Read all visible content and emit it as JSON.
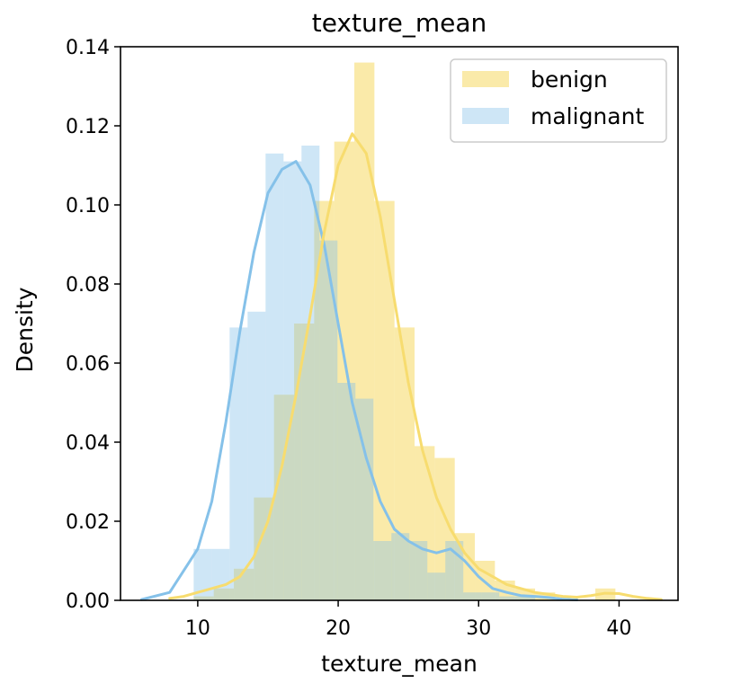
{
  "chart_data": {
    "type": "histogram",
    "title": "texture_mean",
    "xlabel": "texture_mean",
    "ylabel": "Density",
    "xlim": [
      4.5,
      44.2
    ],
    "ylim": [
      0,
      0.14
    ],
    "x_ticks": [
      10,
      20,
      30,
      40
    ],
    "y_ticks": [
      0.0,
      0.02,
      0.04,
      0.06,
      0.08,
      0.1,
      0.12,
      0.14
    ],
    "x_tick_labels": [
      "10",
      "20",
      "30",
      "40"
    ],
    "y_tick_labels": [
      "0.00",
      "0.02",
      "0.04",
      "0.06",
      "0.08",
      "0.10",
      "0.12",
      "0.14"
    ],
    "grid": false,
    "legend_position": "top-right",
    "series": [
      {
        "name": "malignant",
        "color": "#85c1e9",
        "bins": [
          [
            9.71,
            10.99,
            0.013
          ],
          [
            10.99,
            12.27,
            0.013
          ],
          [
            12.27,
            13.55,
            0.069
          ],
          [
            13.55,
            14.83,
            0.073
          ],
          [
            14.83,
            16.11,
            0.113
          ],
          [
            16.11,
            17.39,
            0.111
          ],
          [
            17.39,
            18.67,
            0.115
          ],
          [
            18.67,
            19.95,
            0.091
          ],
          [
            19.95,
            21.23,
            0.055
          ],
          [
            21.23,
            22.51,
            0.051
          ],
          [
            22.51,
            23.79,
            0.015
          ],
          [
            23.79,
            25.07,
            0.017
          ],
          [
            25.07,
            26.35,
            0.015
          ],
          [
            26.35,
            27.63,
            0.007
          ],
          [
            27.63,
            28.91,
            0.015
          ],
          [
            28.91,
            30.19,
            0.002
          ],
          [
            30.19,
            31.47,
            0.002
          ],
          [
            31.47,
            32.75,
            0.001
          ],
          [
            32.75,
            34.03,
            0.001
          ]
        ],
        "kde": [
          [
            6,
            0.0002
          ],
          [
            8,
            0.002
          ],
          [
            10,
            0.013
          ],
          [
            11,
            0.025
          ],
          [
            12,
            0.045
          ],
          [
            13,
            0.068
          ],
          [
            14,
            0.088
          ],
          [
            15,
            0.103
          ],
          [
            16,
            0.109
          ],
          [
            17,
            0.111
          ],
          [
            18,
            0.105
          ],
          [
            19,
            0.09
          ],
          [
            20,
            0.07
          ],
          [
            21,
            0.05
          ],
          [
            22,
            0.036
          ],
          [
            23,
            0.025
          ],
          [
            24,
            0.018
          ],
          [
            25,
            0.015
          ],
          [
            26,
            0.013
          ],
          [
            27,
            0.012
          ],
          [
            28,
            0.013
          ],
          [
            29,
            0.01
          ],
          [
            30,
            0.006
          ],
          [
            31,
            0.003
          ],
          [
            32,
            0.002
          ],
          [
            33,
            0.0012
          ],
          [
            34,
            0.001
          ],
          [
            35,
            0.0007
          ],
          [
            36,
            0.0003
          ],
          [
            37,
            0.0001
          ]
        ]
      },
      {
        "name": "benign",
        "color": "#f7dc6f",
        "bins": [
          [
            9.71,
            11.14,
            0.001
          ],
          [
            11.14,
            12.57,
            0.003
          ],
          [
            12.57,
            14.0,
            0.008
          ],
          [
            14.0,
            15.43,
            0.026
          ],
          [
            15.43,
            16.86,
            0.052
          ],
          [
            16.86,
            18.29,
            0.07
          ],
          [
            18.29,
            19.72,
            0.101
          ],
          [
            19.72,
            21.15,
            0.116
          ],
          [
            21.15,
            22.58,
            0.136
          ],
          [
            22.58,
            24.01,
            0.101
          ],
          [
            24.01,
            25.44,
            0.069
          ],
          [
            25.44,
            26.87,
            0.039
          ],
          [
            26.87,
            28.3,
            0.036
          ],
          [
            28.3,
            29.73,
            0.017
          ],
          [
            29.73,
            31.16,
            0.01
          ],
          [
            31.16,
            32.59,
            0.005
          ],
          [
            32.59,
            34.02,
            0.003
          ],
          [
            34.02,
            35.45,
            0.002
          ],
          [
            35.45,
            36.88,
            0.0
          ],
          [
            36.88,
            38.31,
            0.0
          ],
          [
            38.31,
            39.74,
            0.003
          ]
        ],
        "kde": [
          [
            8,
            0.0005
          ],
          [
            9,
            0.001
          ],
          [
            10,
            0.002
          ],
          [
            11,
            0.003
          ],
          [
            12,
            0.004
          ],
          [
            13,
            0.006
          ],
          [
            14,
            0.011
          ],
          [
            15,
            0.02
          ],
          [
            16,
            0.034
          ],
          [
            17,
            0.052
          ],
          [
            18,
            0.072
          ],
          [
            19,
            0.093
          ],
          [
            20,
            0.11
          ],
          [
            21,
            0.118
          ],
          [
            22,
            0.113
          ],
          [
            23,
            0.097
          ],
          [
            24,
            0.076
          ],
          [
            25,
            0.055
          ],
          [
            26,
            0.038
          ],
          [
            27,
            0.026
          ],
          [
            28,
            0.018
          ],
          [
            29,
            0.012
          ],
          [
            30,
            0.008
          ],
          [
            31,
            0.006
          ],
          [
            32,
            0.004
          ],
          [
            33,
            0.003
          ],
          [
            34,
            0.002
          ],
          [
            35,
            0.0015
          ],
          [
            36,
            0.001
          ],
          [
            37,
            0.0008
          ],
          [
            38,
            0.0012
          ],
          [
            39,
            0.0018
          ],
          [
            40,
            0.0017
          ],
          [
            41,
            0.001
          ],
          [
            42,
            0.0005
          ],
          [
            43,
            0.0002
          ]
        ]
      }
    ]
  }
}
